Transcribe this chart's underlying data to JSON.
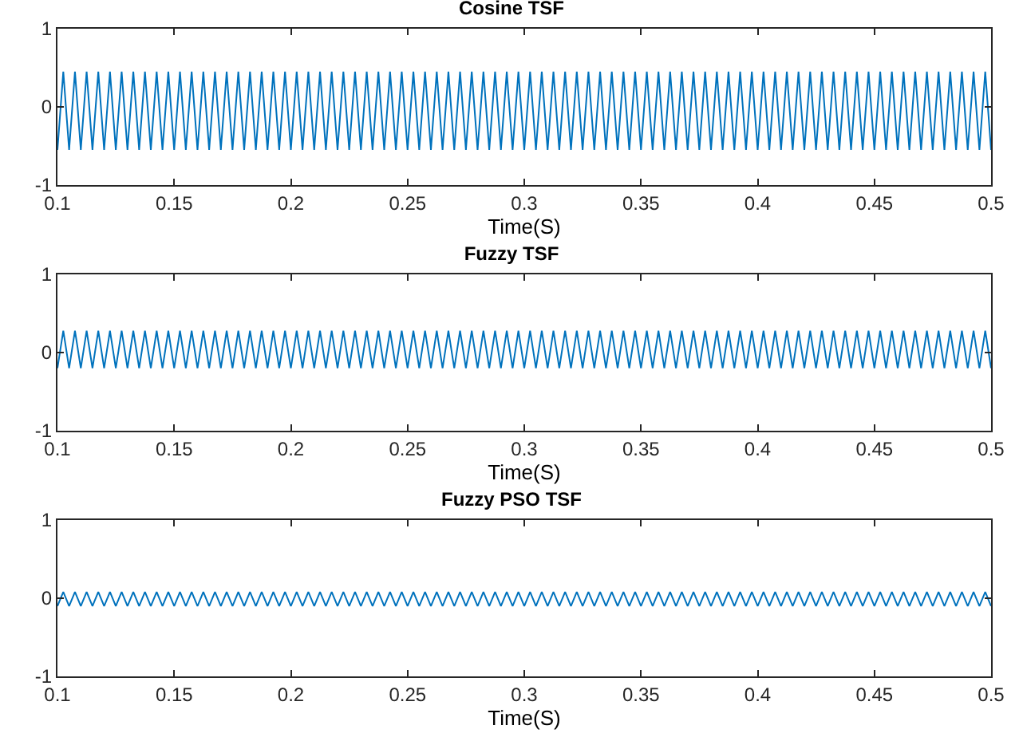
{
  "chart_data": [
    {
      "type": "line",
      "title": "Cosine TSF",
      "xlabel": "Time(S)",
      "xlim": [
        0.1,
        0.5
      ],
      "xticks": [
        0.1,
        0.15,
        0.2,
        0.25,
        0.3,
        0.35,
        0.4,
        0.45,
        0.5
      ],
      "ylim": [
        -1,
        1
      ],
      "yticks": [
        -1,
        0,
        1
      ],
      "grid": false,
      "x": [
        0.1,
        0.1025,
        0.105,
        0.1075,
        0.11,
        0.1125,
        0.115,
        0.1175,
        0.12,
        0.1225,
        0.125,
        0.1275,
        0.13,
        0.1325,
        0.135,
        0.1375,
        0.14,
        0.1425,
        0.145,
        0.1475,
        0.15,
        0.1525,
        0.155,
        0.1575,
        0.16,
        0.1625,
        0.165,
        0.1675,
        0.17,
        0.1725,
        0.175,
        0.1775,
        0.18,
        0.1825,
        0.185,
        0.1875,
        0.19,
        0.1925,
        0.195,
        0.1975,
        0.2,
        0.2025,
        0.205,
        0.2075,
        0.21,
        0.2125,
        0.215,
        0.2175,
        0.22,
        0.2225,
        0.225,
        0.2275,
        0.23,
        0.2325,
        0.235,
        0.2375,
        0.24,
        0.2425,
        0.245,
        0.2475,
        0.25,
        0.2525,
        0.255,
        0.2575,
        0.26,
        0.2625,
        0.265,
        0.2675,
        0.27,
        0.2725,
        0.275,
        0.2775,
        0.28,
        0.2825,
        0.285,
        0.2875,
        0.29,
        0.2925,
        0.295,
        0.2975,
        0.3,
        0.3025,
        0.305,
        0.3075,
        0.31,
        0.3125,
        0.315,
        0.3175,
        0.32,
        0.3225,
        0.325,
        0.3275,
        0.33,
        0.3325,
        0.335,
        0.3375,
        0.34,
        0.3425,
        0.345,
        0.3475,
        0.35,
        0.3525,
        0.355,
        0.3575,
        0.36,
        0.3625,
        0.365,
        0.3675,
        0.37,
        0.3725,
        0.375,
        0.3775,
        0.38,
        0.3825,
        0.385,
        0.3875,
        0.39,
        0.3925,
        0.395,
        0.3975,
        0.4,
        0.4025,
        0.405,
        0.4075,
        0.41,
        0.4125,
        0.415,
        0.4175,
        0.42,
        0.4225,
        0.425,
        0.4275,
        0.43,
        0.4325,
        0.435,
        0.4375,
        0.44,
        0.4425,
        0.445,
        0.4475,
        0.45,
        0.4525,
        0.455,
        0.4575,
        0.46,
        0.4625,
        0.465,
        0.4675,
        0.47,
        0.4725,
        0.475,
        0.4775,
        0.48,
        0.4825,
        0.485,
        0.4875,
        0.49,
        0.4925,
        0.495,
        0.4975,
        0.5
      ],
      "series": [
        {
          "color": "#0072bd",
          "values": [
            -0.55,
            0.45,
            -0.55,
            0.45,
            -0.55,
            0.45,
            -0.55,
            0.45,
            -0.55,
            0.45,
            -0.55,
            0.45,
            -0.55,
            0.45,
            -0.55,
            0.45,
            -0.55,
            0.45,
            -0.55,
            0.45,
            -0.55,
            0.45,
            -0.55,
            0.45,
            -0.55,
            0.45,
            -0.55,
            0.45,
            -0.55,
            0.45,
            -0.55,
            0.45,
            -0.55,
            0.45,
            -0.55,
            0.45,
            -0.55,
            0.45,
            -0.55,
            0.45,
            -0.55,
            0.45,
            -0.55,
            0.45,
            -0.55,
            0.45,
            -0.55,
            0.45,
            -0.55,
            0.45,
            -0.55,
            0.45,
            -0.55,
            0.45,
            -0.55,
            0.45,
            -0.55,
            0.45,
            -0.55,
            0.45,
            -0.55,
            0.45,
            -0.55,
            0.45,
            -0.55,
            0.45,
            -0.55,
            0.45,
            -0.55,
            0.45,
            -0.55,
            0.45,
            -0.55,
            0.45,
            -0.55,
            0.45,
            -0.55,
            0.45,
            -0.55,
            0.45,
            -0.55,
            0.45,
            -0.55,
            0.45,
            -0.55,
            0.45,
            -0.55,
            0.45,
            -0.55,
            0.45,
            -0.55,
            0.45,
            -0.55,
            0.45,
            -0.55,
            0.45,
            -0.55,
            0.45,
            -0.55,
            0.45,
            -0.55,
            0.45,
            -0.55,
            0.45,
            -0.55,
            0.45,
            -0.55,
            0.45,
            -0.55,
            0.45,
            -0.55,
            0.45,
            -0.55,
            0.45,
            -0.55,
            0.45,
            -0.55,
            0.45,
            -0.55,
            0.45,
            -0.55,
            0.45,
            -0.55,
            0.45,
            -0.55,
            0.45,
            -0.55,
            0.45,
            -0.55,
            0.45,
            -0.55,
            0.45,
            -0.55,
            0.45,
            -0.55,
            0.45,
            -0.55,
            0.45,
            -0.55,
            0.45,
            -0.55,
            0.45,
            -0.55,
            0.45,
            -0.55,
            0.45,
            -0.55,
            0.45,
            -0.55,
            0.45,
            -0.55,
            0.45,
            -0.55,
            0.45,
            -0.55,
            0.45,
            -0.55,
            0.45,
            -0.55,
            0.45,
            -0.55
          ]
        }
      ]
    },
    {
      "type": "line",
      "title": "Fuzzy TSF",
      "xlabel": "Time(S)",
      "xlim": [
        0.1,
        0.5
      ],
      "xticks": [
        0.1,
        0.15,
        0.2,
        0.25,
        0.3,
        0.35,
        0.4,
        0.45,
        0.5
      ],
      "ylim": [
        -1,
        1
      ],
      "yticks": [
        -1,
        0,
        1
      ],
      "grid": false,
      "x": [
        0.1,
        0.1025,
        0.105,
        0.1075,
        0.11,
        0.1125,
        0.115,
        0.1175,
        0.12,
        0.1225,
        0.125,
        0.1275,
        0.13,
        0.1325,
        0.135,
        0.1375,
        0.14,
        0.1425,
        0.145,
        0.1475,
        0.15,
        0.1525,
        0.155,
        0.1575,
        0.16,
        0.1625,
        0.165,
        0.1675,
        0.17,
        0.1725,
        0.175,
        0.1775,
        0.18,
        0.1825,
        0.185,
        0.1875,
        0.19,
        0.1925,
        0.195,
        0.1975,
        0.2,
        0.2025,
        0.205,
        0.2075,
        0.21,
        0.2125,
        0.215,
        0.2175,
        0.22,
        0.2225,
        0.225,
        0.2275,
        0.23,
        0.2325,
        0.235,
        0.2375,
        0.24,
        0.2425,
        0.245,
        0.2475,
        0.25,
        0.2525,
        0.255,
        0.2575,
        0.26,
        0.2625,
        0.265,
        0.2675,
        0.27,
        0.2725,
        0.275,
        0.2775,
        0.28,
        0.2825,
        0.285,
        0.2875,
        0.29,
        0.2925,
        0.295,
        0.2975,
        0.3,
        0.3025,
        0.305,
        0.3075,
        0.31,
        0.3125,
        0.315,
        0.3175,
        0.32,
        0.3225,
        0.325,
        0.3275,
        0.33,
        0.3325,
        0.335,
        0.3375,
        0.34,
        0.3425,
        0.345,
        0.3475,
        0.35,
        0.3525,
        0.355,
        0.3575,
        0.36,
        0.3625,
        0.365,
        0.3675,
        0.37,
        0.3725,
        0.375,
        0.3775,
        0.38,
        0.3825,
        0.385,
        0.3875,
        0.39,
        0.3925,
        0.395,
        0.3975,
        0.4,
        0.4025,
        0.405,
        0.4075,
        0.41,
        0.4125,
        0.415,
        0.4175,
        0.42,
        0.4225,
        0.425,
        0.4275,
        0.43,
        0.4325,
        0.435,
        0.4375,
        0.44,
        0.4425,
        0.445,
        0.4475,
        0.45,
        0.4525,
        0.455,
        0.4575,
        0.46,
        0.4625,
        0.465,
        0.4675,
        0.47,
        0.4725,
        0.475,
        0.4775,
        0.48,
        0.4825,
        0.485,
        0.4875,
        0.49,
        0.4925,
        0.495,
        0.4975,
        0.5
      ],
      "series": [
        {
          "color": "#0072bd",
          "values": [
            -0.2,
            0.28,
            -0.2,
            0.28,
            -0.2,
            0.28,
            -0.2,
            0.28,
            -0.2,
            0.28,
            -0.2,
            0.28,
            -0.2,
            0.28,
            -0.2,
            0.28,
            -0.2,
            0.28,
            -0.2,
            0.28,
            -0.2,
            0.28,
            -0.2,
            0.28,
            -0.2,
            0.28,
            -0.2,
            0.28,
            -0.2,
            0.28,
            -0.2,
            0.28,
            -0.2,
            0.28,
            -0.2,
            0.28,
            -0.2,
            0.28,
            -0.2,
            0.28,
            -0.2,
            0.28,
            -0.2,
            0.28,
            -0.2,
            0.28,
            -0.2,
            0.28,
            -0.2,
            0.28,
            -0.2,
            0.28,
            -0.2,
            0.28,
            -0.2,
            0.28,
            -0.2,
            0.28,
            -0.2,
            0.28,
            -0.2,
            0.28,
            -0.2,
            0.28,
            -0.2,
            0.28,
            -0.2,
            0.28,
            -0.2,
            0.28,
            -0.2,
            0.28,
            -0.2,
            0.28,
            -0.2,
            0.28,
            -0.2,
            0.28,
            -0.2,
            0.28,
            -0.2,
            0.28,
            -0.2,
            0.28,
            -0.2,
            0.28,
            -0.2,
            0.28,
            -0.2,
            0.28,
            -0.2,
            0.28,
            -0.2,
            0.28,
            -0.2,
            0.28,
            -0.2,
            0.28,
            -0.2,
            0.28,
            -0.2,
            0.28,
            -0.2,
            0.28,
            -0.2,
            0.28,
            -0.2,
            0.28,
            -0.2,
            0.28,
            -0.2,
            0.28,
            -0.2,
            0.28,
            -0.2,
            0.28,
            -0.2,
            0.28,
            -0.2,
            0.28,
            -0.2,
            0.28,
            -0.2,
            0.28,
            -0.2,
            0.28,
            -0.2,
            0.28,
            -0.2,
            0.28,
            -0.2,
            0.28,
            -0.2,
            0.28,
            -0.2,
            0.28,
            -0.2,
            0.28,
            -0.2,
            0.28,
            -0.2,
            0.28,
            -0.2,
            0.28,
            -0.2,
            0.28,
            -0.2,
            0.28,
            -0.2,
            0.28,
            -0.2,
            0.28,
            -0.2,
            0.28,
            -0.2,
            0.28,
            -0.2,
            0.28,
            -0.2,
            0.28,
            -0.2
          ]
        }
      ]
    },
    {
      "type": "line",
      "title": "Fuzzy PSO TSF",
      "xlabel": "Time(S)",
      "xlim": [
        0.1,
        0.5
      ],
      "xticks": [
        0.1,
        0.15,
        0.2,
        0.25,
        0.3,
        0.35,
        0.4,
        0.45,
        0.5
      ],
      "ylim": [
        -1,
        1
      ],
      "yticks": [
        -1,
        0,
        1
      ],
      "grid": false,
      "x": [
        0.1,
        0.1025,
        0.105,
        0.1075,
        0.11,
        0.1125,
        0.115,
        0.1175,
        0.12,
        0.1225,
        0.125,
        0.1275,
        0.13,
        0.1325,
        0.135,
        0.1375,
        0.14,
        0.1425,
        0.145,
        0.1475,
        0.15,
        0.1525,
        0.155,
        0.1575,
        0.16,
        0.1625,
        0.165,
        0.1675,
        0.17,
        0.1725,
        0.175,
        0.1775,
        0.18,
        0.1825,
        0.185,
        0.1875,
        0.19,
        0.1925,
        0.195,
        0.1975,
        0.2,
        0.2025,
        0.205,
        0.2075,
        0.21,
        0.2125,
        0.215,
        0.2175,
        0.22,
        0.2225,
        0.225,
        0.2275,
        0.23,
        0.2325,
        0.235,
        0.2375,
        0.24,
        0.2425,
        0.245,
        0.2475,
        0.25,
        0.2525,
        0.255,
        0.2575,
        0.26,
        0.2625,
        0.265,
        0.2675,
        0.27,
        0.2725,
        0.275,
        0.2775,
        0.28,
        0.2825,
        0.285,
        0.2875,
        0.29,
        0.2925,
        0.295,
        0.2975,
        0.3,
        0.3025,
        0.305,
        0.3075,
        0.31,
        0.3125,
        0.315,
        0.3175,
        0.32,
        0.3225,
        0.325,
        0.3275,
        0.33,
        0.3325,
        0.335,
        0.3375,
        0.34,
        0.3425,
        0.345,
        0.3475,
        0.35,
        0.3525,
        0.355,
        0.3575,
        0.36,
        0.3625,
        0.365,
        0.3675,
        0.37,
        0.3725,
        0.375,
        0.3775,
        0.38,
        0.3825,
        0.385,
        0.3875,
        0.39,
        0.3925,
        0.395,
        0.3975,
        0.4,
        0.4025,
        0.405,
        0.4075,
        0.41,
        0.4125,
        0.415,
        0.4175,
        0.42,
        0.4225,
        0.425,
        0.4275,
        0.43,
        0.4325,
        0.435,
        0.4375,
        0.44,
        0.4425,
        0.445,
        0.4475,
        0.45,
        0.4525,
        0.455,
        0.4575,
        0.46,
        0.4625,
        0.465,
        0.4675,
        0.47,
        0.4725,
        0.475,
        0.4775,
        0.48,
        0.4825,
        0.485,
        0.4875,
        0.49,
        0.4925,
        0.495,
        0.4975,
        0.5
      ],
      "series": [
        {
          "color": "#0072bd",
          "values": [
            -0.1,
            0.08,
            -0.1,
            0.08,
            -0.1,
            0.08,
            -0.1,
            0.08,
            -0.1,
            0.08,
            -0.1,
            0.08,
            -0.1,
            0.08,
            -0.1,
            0.08,
            -0.1,
            0.08,
            -0.1,
            0.08,
            -0.1,
            0.08,
            -0.1,
            0.08,
            -0.1,
            0.08,
            -0.1,
            0.08,
            -0.1,
            0.08,
            -0.1,
            0.08,
            -0.1,
            0.08,
            -0.1,
            0.08,
            -0.1,
            0.08,
            -0.1,
            0.08,
            -0.1,
            0.08,
            -0.1,
            0.08,
            -0.1,
            0.08,
            -0.1,
            0.08,
            -0.1,
            0.08,
            -0.1,
            0.08,
            -0.1,
            0.08,
            -0.1,
            0.08,
            -0.1,
            0.08,
            -0.1,
            0.08,
            -0.1,
            0.08,
            -0.1,
            0.08,
            -0.1,
            0.08,
            -0.1,
            0.08,
            -0.1,
            0.08,
            -0.1,
            0.08,
            -0.1,
            0.08,
            -0.1,
            0.08,
            -0.1,
            0.08,
            -0.1,
            0.08,
            -0.1,
            0.08,
            -0.1,
            0.08,
            -0.1,
            0.08,
            -0.1,
            0.08,
            -0.1,
            0.08,
            -0.1,
            0.08,
            -0.1,
            0.08,
            -0.1,
            0.08,
            -0.1,
            0.08,
            -0.1,
            0.08,
            -0.1,
            0.08,
            -0.1,
            0.08,
            -0.1,
            0.08,
            -0.1,
            0.08,
            -0.1,
            0.08,
            -0.1,
            0.08,
            -0.1,
            0.08,
            -0.1,
            0.08,
            -0.1,
            0.08,
            -0.1,
            0.08,
            -0.1,
            0.08,
            -0.1,
            0.08,
            -0.1,
            0.08,
            -0.1,
            0.08,
            -0.1,
            0.08,
            -0.1,
            0.08,
            -0.1,
            0.08,
            -0.1,
            0.08,
            -0.1,
            0.08,
            -0.1,
            0.08,
            -0.1,
            0.08,
            -0.1,
            0.08,
            -0.1,
            0.08,
            -0.1,
            0.08,
            -0.1,
            0.08,
            -0.1,
            0.08,
            -0.1,
            0.08,
            -0.1,
            0.08,
            -0.1,
            0.08,
            -0.1,
            0.08,
            -0.1
          ]
        }
      ]
    }
  ]
}
